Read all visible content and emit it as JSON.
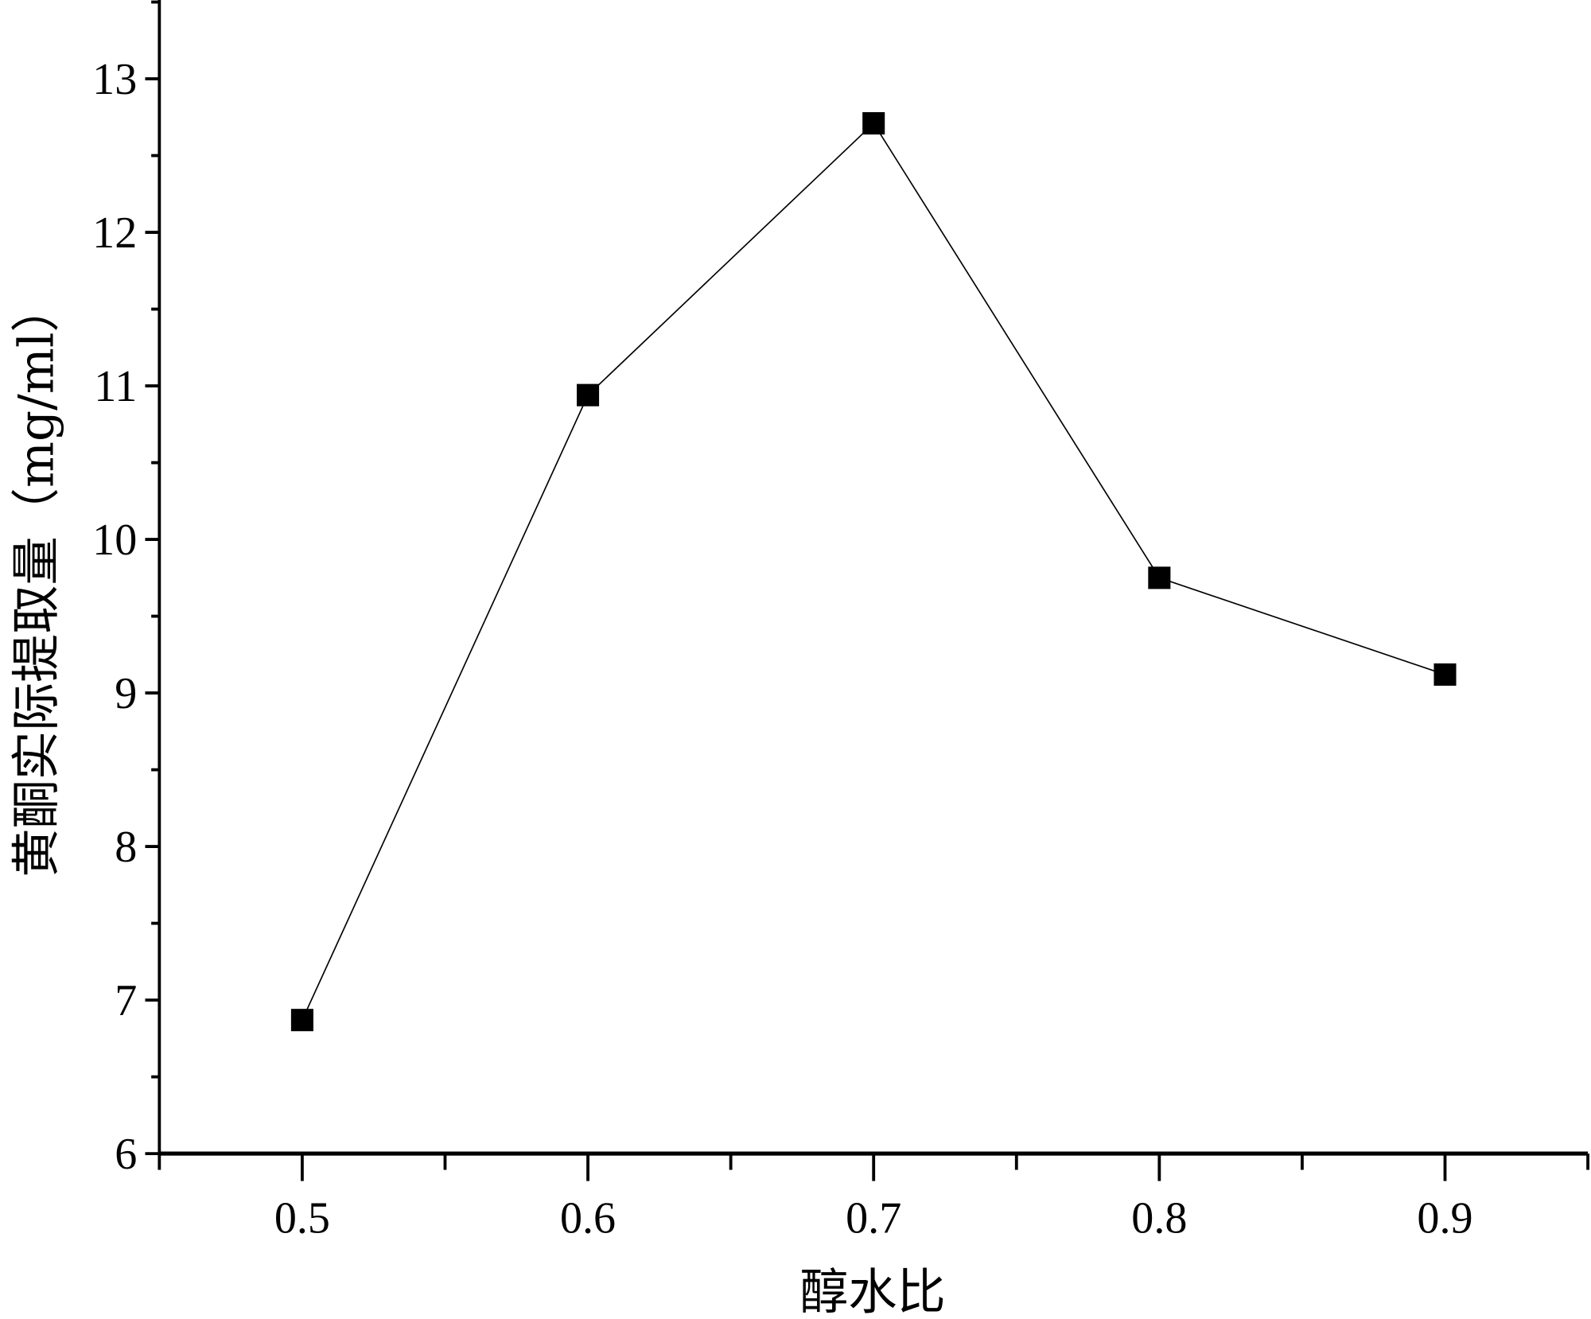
{
  "chart_data": {
    "type": "line",
    "title": "",
    "xlabel": "醇水比",
    "ylabel": "黄酮实际提取量（mg/ml）",
    "x": [
      0.5,
      0.6,
      0.7,
      0.8,
      0.9
    ],
    "series": [
      {
        "values": [
          6.87,
          10.94,
          12.71,
          9.75,
          9.12
        ],
        "marker": "square",
        "color": "#000000"
      }
    ],
    "xlim": [
      0.45,
      0.95
    ],
    "ylim": [
      6,
      13.5
    ],
    "xticks": [
      "0.5",
      "0.6",
      "0.7",
      "0.8",
      "0.9"
    ],
    "yticks": [
      "6",
      "7",
      "8",
      "9",
      "10",
      "11",
      "12",
      "13"
    ],
    "grid": false,
    "legend": "none"
  }
}
